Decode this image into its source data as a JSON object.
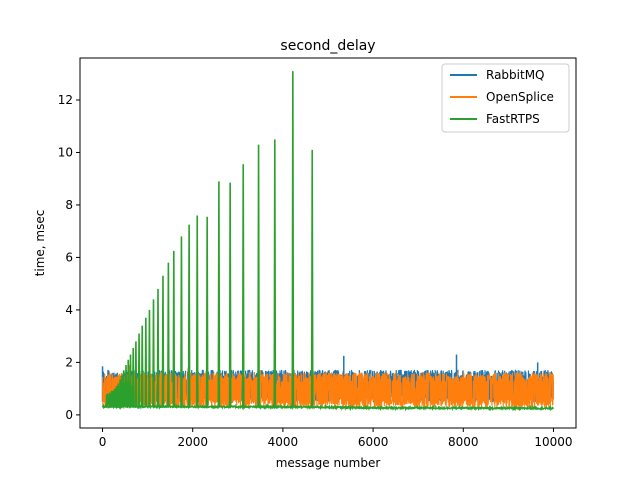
{
  "chart_data": {
    "type": "line",
    "title": "second_delay",
    "xlabel": "message number",
    "ylabel": "time, msec",
    "xlim": [
      -500,
      10500
    ],
    "ylim": [
      -0.5,
      13.6
    ],
    "xticks": [
      0,
      2000,
      4000,
      6000,
      8000,
      10000
    ],
    "yticks": [
      0,
      2,
      4,
      6,
      8,
      10,
      12
    ],
    "grid": false,
    "legend_position": "upper right",
    "series": [
      {
        "name": "RabbitMQ",
        "color": "#1f77b4",
        "style": "dense band",
        "x_range": [
          0,
          10000
        ],
        "band": [
          0.5,
          1.7
        ],
        "spikes": [
          [
            0,
            1.85
          ],
          [
            5350,
            2.25
          ],
          [
            7850,
            2.3
          ],
          [
            9650,
            2.0
          ]
        ]
      },
      {
        "name": "OpenSplice",
        "color": "#ff7f0e",
        "style": "dense band",
        "x_range": [
          0,
          10000
        ],
        "band": [
          0.3,
          1.6
        ],
        "spikes": [
          [
            600,
            1.9
          ],
          [
            1900,
            1.8
          ],
          [
            3500,
            1.7
          ]
        ]
      },
      {
        "name": "FastRTPS",
        "color": "#2ca02c",
        "style": "baseline with spikes",
        "x_range": [
          0,
          10000
        ],
        "baseline": [
          [
            0,
            0.32
          ],
          [
            4500,
            0.3
          ],
          [
            6000,
            0.27
          ],
          [
            10000,
            0.25
          ]
        ],
        "spikes": [
          [
            230,
            0.9
          ],
          [
            270,
            1.0
          ],
          [
            310,
            1.1
          ],
          [
            350,
            1.2
          ],
          [
            390,
            1.35
          ],
          [
            430,
            1.5
          ],
          [
            470,
            1.7
          ],
          [
            520,
            1.9
          ],
          [
            570,
            2.1
          ],
          [
            620,
            2.3
          ],
          [
            680,
            2.55
          ],
          [
            740,
            2.8
          ],
          [
            810,
            3.1
          ],
          [
            880,
            3.4
          ],
          [
            960,
            3.7
          ],
          [
            1040,
            4.0
          ],
          [
            1130,
            4.4
          ],
          [
            1230,
            4.8
          ],
          [
            1340,
            5.3
          ],
          [
            1460,
            5.8
          ],
          [
            1580,
            6.25
          ],
          [
            1750,
            6.8
          ],
          [
            1920,
            7.25
          ],
          [
            2100,
            7.6
          ],
          [
            2320,
            7.55
          ],
          [
            2580,
            8.9
          ],
          [
            2830,
            8.85
          ],
          [
            3120,
            9.55
          ],
          [
            3460,
            10.3
          ],
          [
            3820,
            10.5
          ],
          [
            4220,
            13.1
          ],
          [
            4650,
            10.1
          ]
        ]
      }
    ]
  }
}
